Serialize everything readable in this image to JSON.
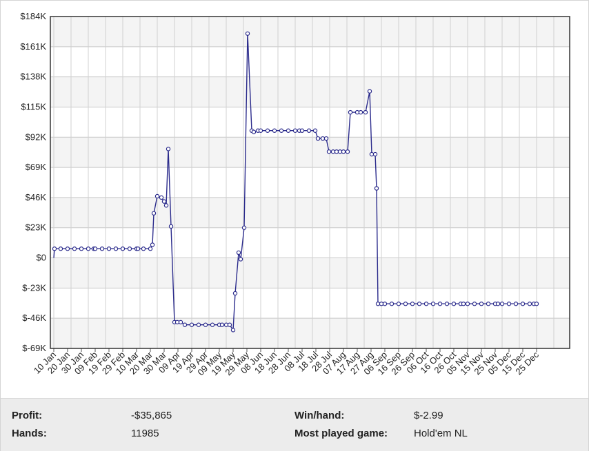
{
  "chart_data": {
    "type": "line",
    "ylim": [
      -69000,
      184000
    ],
    "y_ticks": [
      "$184K",
      "$161K",
      "$138K",
      "$115K",
      "$92K",
      "$69K",
      "$46K",
      "$23K",
      "$0",
      "$-23K",
      "$-46K",
      "$-69K"
    ],
    "y_tick_values": [
      184000,
      161000,
      138000,
      115000,
      92000,
      69000,
      46000,
      23000,
      0,
      -23000,
      -46000,
      -69000
    ],
    "x_ticks": [
      "10 Jan",
      "20 Jan",
      "30 Jan",
      "09 Feb",
      "19 Feb",
      "29 Feb",
      "10 Mar",
      "20 Mar",
      "30 Mar",
      "09 Apr",
      "19 Apr",
      "29 Apr",
      "09 May",
      "19 May",
      "29 May",
      "08 Jun",
      "18 Jun",
      "28 Jun",
      "08 Jul",
      "18 Jul",
      "28 Jul",
      "07 Aug",
      "17 Aug",
      "27 Aug",
      "06 Sep",
      "16 Sep",
      "26 Sep",
      "06 Oct",
      "16 Oct",
      "26 Oct",
      "05 Nov",
      "15 Nov",
      "25 Nov",
      "05 Dec",
      "15 Dec",
      "25 Dec"
    ],
    "grid": true,
    "line_color": "#2b2b8c",
    "points": [
      [
        0,
        0
      ],
      [
        0.1,
        7000
      ],
      [
        1,
        7000
      ],
      [
        2,
        7000
      ],
      [
        3,
        7000
      ],
      [
        4,
        7000
      ],
      [
        5,
        7000
      ],
      [
        5.8,
        7000
      ],
      [
        6,
        7000
      ],
      [
        7,
        7000
      ],
      [
        8,
        7000
      ],
      [
        9,
        7000
      ],
      [
        10,
        7000
      ],
      [
        11,
        7000
      ],
      [
        12,
        7000
      ],
      [
        12.2,
        7000
      ],
      [
        13,
        7000
      ],
      [
        14,
        7000
      ],
      [
        14.3,
        10000
      ],
      [
        14.5,
        34000
      ],
      [
        15,
        47000
      ],
      [
        15.6,
        46000
      ],
      [
        16,
        43000
      ],
      [
        16.3,
        40000
      ],
      [
        16.6,
        83000
      ],
      [
        17,
        24000
      ],
      [
        17.5,
        -49000
      ],
      [
        17.9,
        -49000
      ],
      [
        18.4,
        -49000
      ],
      [
        19,
        -51000
      ],
      [
        20,
        -51000
      ],
      [
        21,
        -51000
      ],
      [
        22,
        -51000
      ],
      [
        23,
        -51000
      ],
      [
        24,
        -51000
      ],
      [
        24.4,
        -51000
      ],
      [
        25,
        -51000
      ],
      [
        25.5,
        -51000
      ],
      [
        26,
        -55000
      ],
      [
        26.3,
        -27000
      ],
      [
        26.8,
        4000
      ],
      [
        27.1,
        -1000
      ],
      [
        27.6,
        23000
      ],
      [
        28.1,
        171000
      ],
      [
        28.7,
        97000
      ],
      [
        29,
        96000
      ],
      [
        29.6,
        97000
      ],
      [
        30,
        97000
      ],
      [
        31,
        97000
      ],
      [
        32,
        97000
      ],
      [
        33,
        97000
      ],
      [
        34,
        97000
      ],
      [
        35,
        97000
      ],
      [
        35.6,
        97000
      ],
      [
        36,
        97000
      ],
      [
        37,
        97000
      ],
      [
        37.9,
        97000
      ],
      [
        38.3,
        91000
      ],
      [
        39,
        91000
      ],
      [
        39.5,
        91000
      ],
      [
        39.9,
        81000
      ],
      [
        40.5,
        81000
      ],
      [
        41,
        81000
      ],
      [
        41.5,
        81000
      ],
      [
        42,
        81000
      ],
      [
        42.6,
        81000
      ],
      [
        43,
        111000
      ],
      [
        44,
        111000
      ],
      [
        44.5,
        111000
      ],
      [
        45.2,
        111000
      ],
      [
        45.8,
        127000
      ],
      [
        46.1,
        79000
      ],
      [
        46.6,
        79000
      ],
      [
        46.8,
        53000
      ],
      [
        47,
        -35000
      ],
      [
        47.5,
        -35000
      ],
      [
        48,
        -35000
      ],
      [
        49,
        -35000
      ],
      [
        50,
        -35000
      ],
      [
        51,
        -35000
      ],
      [
        52,
        -35000
      ],
      [
        53,
        -35000
      ],
      [
        54,
        -35000
      ],
      [
        55,
        -35000
      ],
      [
        56,
        -35000
      ],
      [
        57,
        -35000
      ],
      [
        58,
        -35000
      ],
      [
        59,
        -35000
      ],
      [
        59.4,
        -35000
      ],
      [
        60,
        -35000
      ],
      [
        61,
        -35000
      ],
      [
        62,
        -35000
      ],
      [
        63,
        -35000
      ],
      [
        64,
        -35000
      ],
      [
        64.4,
        -35000
      ],
      [
        65,
        -35000
      ],
      [
        66,
        -35000
      ],
      [
        67,
        -35000
      ],
      [
        68,
        -35000
      ],
      [
        69,
        -35000
      ],
      [
        69.6,
        -35000
      ],
      [
        70,
        -35000
      ]
    ]
  },
  "stats": {
    "profit_label": "Profit:",
    "profit_value": "-$35,865",
    "hands_label": "Hands:",
    "hands_value": "11985",
    "winhand_label": "Win/hand:",
    "winhand_value": "$-2.99",
    "game_label": "Most played game:",
    "game_value": "Hold'em NL"
  }
}
